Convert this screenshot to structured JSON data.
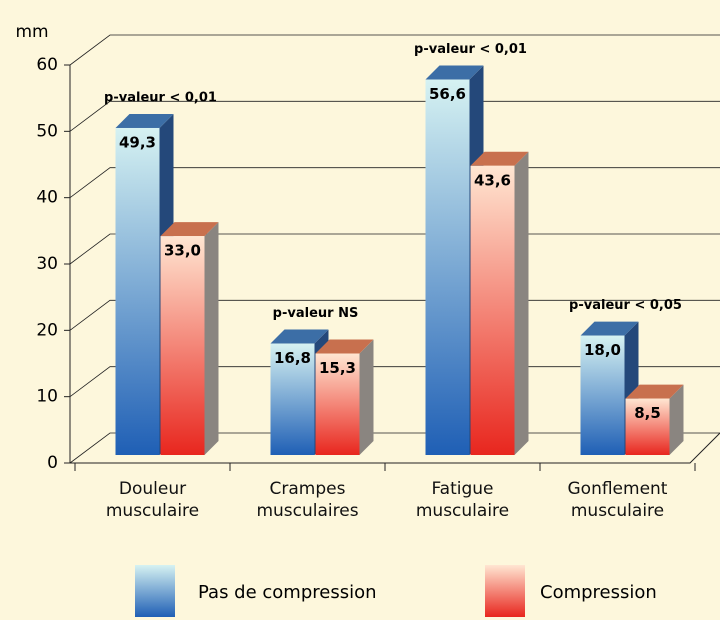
{
  "chart_data": {
    "type": "bar3d",
    "y_label": "mm",
    "categories": [
      "Douleur musculaire",
      "Crampes musculaires",
      "Fatigue musculaire",
      "Gonflement musculaire"
    ],
    "annotations": [
      "p-valeur < 0,01",
      "p-valeur NS",
      "p-valeur < 0,01",
      "p-valeur < 0,05"
    ],
    "series": [
      {
        "name": "Pas de compression",
        "color": "#1f5fb5",
        "values": [
          49.3,
          16.8,
          56.6,
          18.0
        ],
        "value_labels": [
          "49,3",
          "16,8",
          "56,6",
          "18,0"
        ]
      },
      {
        "name": "Compression",
        "color": "#e8261e",
        "values": [
          33.0,
          15.3,
          43.6,
          8.5
        ],
        "value_labels": [
          "33,0",
          "15,3",
          "43,6",
          "8,5"
        ]
      }
    ],
    "ylim": [
      0,
      60
    ],
    "yticks": [
      0,
      10,
      20,
      30,
      40,
      50,
      60
    ],
    "grid": true
  }
}
